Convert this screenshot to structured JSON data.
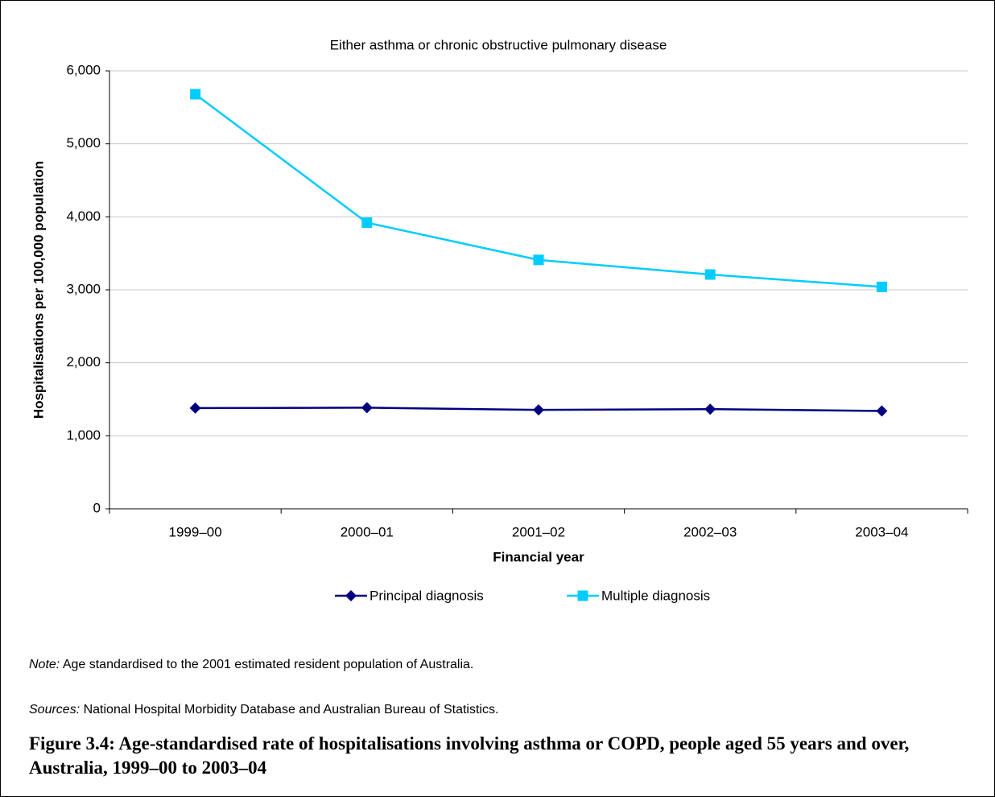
{
  "chart_data": {
    "type": "line",
    "subtitle": "Either asthma or chronic obstructive pulmonary disease",
    "y_label": "Hospitalisations per 100,000 population",
    "x_label": "Financial year",
    "categories": [
      "1999–00",
      "2000–01",
      "2001–02",
      "2002–03",
      "2003–04"
    ],
    "series": [
      {
        "name": "Principal diagnosis",
        "color": "#000080",
        "marker": "diamond",
        "values": [
          1380,
          1385,
          1355,
          1365,
          1340
        ]
      },
      {
        "name": "Multiple diagnosis",
        "color": "#00ccff",
        "marker": "square",
        "values": [
          5680,
          3920,
          3410,
          3210,
          3040
        ]
      }
    ],
    "ylim": [
      0,
      6000
    ],
    "yticks": [
      0,
      {
        "value": 1000,
        "label": "1,000"
      },
      {
        "value": 2000,
        "label": "2,000"
      },
      {
        "value": 3000,
        "label": "3,000"
      },
      {
        "value": 4000,
        "label": "4,000"
      },
      {
        "value": 5000,
        "label": "5,000"
      },
      {
        "value": 6000,
        "label": "6,000"
      }
    ],
    "grid": true,
    "legend": "bottom"
  },
  "note": {
    "label": "Note:",
    "text": "Age standardised to the 2001 estimated resident population of Australia."
  },
  "sources": {
    "label": "Sources:",
    "text": "National Hospital Morbidity Database and Australian Bureau of Statistics."
  },
  "caption": "Figure 3.4: Age-standardised rate of hospitalisations involving asthma or COPD, people aged 55 years and over, Australia, 1999–00 to 2003–04"
}
